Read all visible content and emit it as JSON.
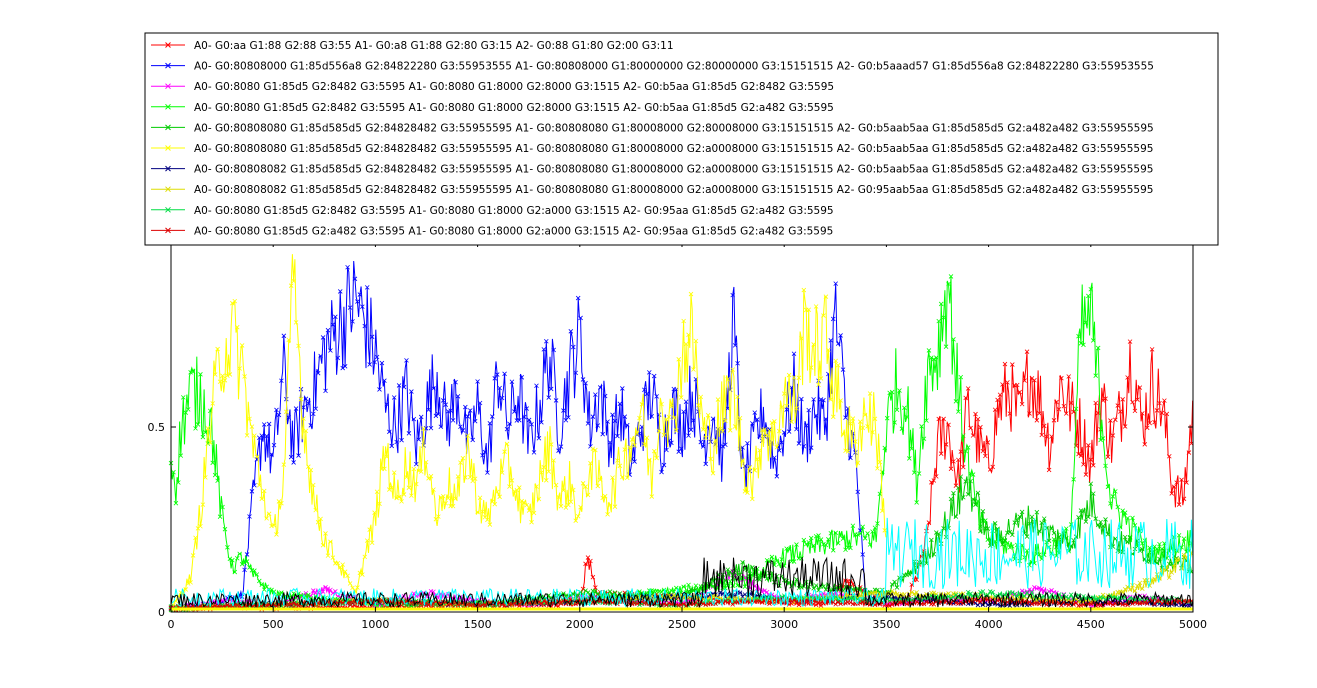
{
  "chart_data": {
    "type": "line",
    "title": "",
    "xlabel": "",
    "ylabel": "",
    "xlim": [
      0,
      5000
    ],
    "ylim": [
      0,
      1
    ],
    "x_ticks": [
      0,
      500,
      1000,
      1500,
      2000,
      2500,
      3000,
      3500,
      4000,
      4500,
      5000
    ],
    "x_tick_labels": [
      "0",
      "500",
      "1000",
      "1500",
      "2000",
      "2500",
      "3000",
      "3500",
      "4000",
      "4500",
      "5000"
    ],
    "y_ticks": [
      0,
      0.5
    ],
    "y_tick_labels": [
      "0",
      "0.5"
    ],
    "grid": false,
    "legend_position": "top",
    "marker": "x",
    "series": [
      {
        "name": "A0- G0:aa G1:88 G2:88 G3:55 A1- G0:a8 G1:88 G2:80 G3:15 A2- G0:88 G1:80 G2:00 G3:11",
        "color": "#ff0000",
        "x": [
          0,
          2000,
          2040,
          2080,
          3200,
          3300,
          3500,
          3600,
          3650,
          3700,
          3750,
          3800,
          3850,
          3900,
          3950,
          4000,
          4050,
          4100,
          4150,
          4200,
          4250,
          4300,
          4350,
          4400,
          4450,
          4500,
          4550,
          4600,
          4650,
          4700,
          4750,
          4800,
          4850,
          4900,
          4950,
          5000
        ],
        "y": [
          0.01,
          0.02,
          0.15,
          0.05,
          0.02,
          0.08,
          0.02,
          0.03,
          0.1,
          0.2,
          0.45,
          0.5,
          0.35,
          0.55,
          0.45,
          0.4,
          0.55,
          0.6,
          0.52,
          0.65,
          0.58,
          0.45,
          0.62,
          0.55,
          0.5,
          0.4,
          0.6,
          0.45,
          0.55,
          0.7,
          0.5,
          0.62,
          0.55,
          0.35,
          0.3,
          0.55
        ]
      },
      {
        "name": "A0- G0:80808000 G1:85d556a8 G2:84822280 G3:55953555 A1- G0:80808000 G1:80000000 G2:80000000 G3:15151515 A2- G0:b5aaad57 G1:85d556a8 G2:84822280 G3:55953555",
        "color": "#0000ff",
        "x": [
          0,
          200,
          350,
          400,
          450,
          500,
          550,
          600,
          650,
          700,
          750,
          800,
          850,
          900,
          950,
          1000,
          1050,
          1100,
          1150,
          1200,
          1250,
          1300,
          1350,
          1400,
          1450,
          1500,
          1550,
          1600,
          1650,
          1700,
          1750,
          1800,
          1850,
          1900,
          1950,
          2000,
          2050,
          2100,
          2150,
          2200,
          2250,
          2300,
          2350,
          2400,
          2450,
          2500,
          2550,
          2600,
          2650,
          2700,
          2750,
          2800,
          2850,
          2900,
          2950,
          3000,
          3050,
          3100,
          3150,
          3200,
          3250,
          3300,
          3350,
          3400
        ],
        "y": [
          0.01,
          0.02,
          0.05,
          0.3,
          0.5,
          0.4,
          0.65,
          0.45,
          0.55,
          0.6,
          0.7,
          0.75,
          0.8,
          0.85,
          0.78,
          0.7,
          0.55,
          0.5,
          0.6,
          0.45,
          0.55,
          0.65,
          0.5,
          0.6,
          0.45,
          0.55,
          0.4,
          0.65,
          0.5,
          0.6,
          0.45,
          0.55,
          0.7,
          0.5,
          0.65,
          0.75,
          0.5,
          0.6,
          0.45,
          0.55,
          0.4,
          0.5,
          0.6,
          0.45,
          0.55,
          0.5,
          0.6,
          0.45,
          0.55,
          0.4,
          0.8,
          0.35,
          0.45,
          0.55,
          0.4,
          0.5,
          0.6,
          0.45,
          0.55,
          0.5,
          0.8,
          0.55,
          0.4,
          0.02
        ]
      },
      {
        "name": "A0- G0:8080 G1:85d5 G2:8482 G3:5595 A1- G0:8080 G1:8000 G2:8000 G3:1515 A2- G0:b5aa G1:85d5 G2:8482 G3:5595",
        "color": "#ff00ff",
        "x": [
          0,
          250,
          500,
          750,
          1000,
          1250,
          1500,
          1750,
          2000,
          2250,
          2500,
          2750,
          3000,
          3250,
          3500,
          3750,
          4000,
          4250,
          4500,
          4750,
          5000
        ],
        "y": [
          0.01,
          0.03,
          0.02,
          0.06,
          0.02,
          0.05,
          0.03,
          0.02,
          0.04,
          0.03,
          0.02,
          0.1,
          0.03,
          0.05,
          0.02,
          0.04,
          0.03,
          0.06,
          0.02,
          0.04,
          0.02
        ]
      },
      {
        "name": "A0- G0:8080 G1:85d5 G2:8482 G3:5595 A1- G0:8080 G1:8000 G2:8000 G3:1515 A2- G0:b5aa G1:85d5 G2:a482 G3:5595",
        "color": "#00ff00",
        "x": [
          0,
          25,
          50,
          100,
          150,
          200,
          250,
          300,
          350,
          400,
          500,
          1000,
          2000,
          2800,
          3000,
          3300,
          3450,
          3500,
          3550,
          3600,
          3650,
          3700,
          3750,
          3800,
          3850,
          3900,
          3950,
          4000,
          4200,
          4400,
          4450,
          4500,
          4600,
          4800,
          5000
        ],
        "y": [
          0.4,
          0.35,
          0.5,
          0.6,
          0.58,
          0.5,
          0.25,
          0.12,
          0.15,
          0.1,
          0.05,
          0.02,
          0.03,
          0.08,
          0.15,
          0.2,
          0.2,
          0.5,
          0.62,
          0.55,
          0.35,
          0.65,
          0.7,
          0.9,
          0.6,
          0.4,
          0.25,
          0.2,
          0.15,
          0.2,
          0.75,
          0.8,
          0.3,
          0.15,
          0.2
        ]
      },
      {
        "name": "A0- G0:80808080 G1:85d585d5 G2:84828482 G3:55955595 A1- G0:80808080 G1:80008000 G2:80008000 G3:15151515 A2- G0:b5aab5aa G1:85d585d5 G2:a482a482 G3:55955595",
        "color": "#00cc00",
        "x": [
          0,
          500,
          1000,
          1500,
          2000,
          2500,
          2800,
          3000,
          3500,
          3700,
          3800,
          3900,
          4000,
          4200,
          4400,
          4500,
          4600,
          4800,
          5000
        ],
        "y": [
          0.01,
          0.02,
          0.03,
          0.02,
          0.05,
          0.04,
          0.12,
          0.08,
          0.05,
          0.15,
          0.25,
          0.35,
          0.2,
          0.25,
          0.18,
          0.3,
          0.2,
          0.15,
          0.12
        ]
      },
      {
        "name": "A0- G0:80808080 G1:85d585d5 G2:84828482 G3:55955595 A1- G0:80808080 G1:80008000 G2:a0008000 G3:15151515 A2- G0:b5aab5aa G1:85d585d5 G2:a482a482 G3:55955595",
        "color": "#ffff00",
        "x": [
          0,
          50,
          100,
          150,
          200,
          250,
          300,
          350,
          400,
          500,
          550,
          600,
          650,
          700,
          750,
          800,
          850,
          900,
          950,
          1000,
          1050,
          1100,
          1150,
          1200,
          1250,
          1300,
          1350,
          1400,
          1450,
          1500,
          1550,
          1600,
          1650,
          1700,
          1750,
          1800,
          1850,
          1900,
          1950,
          2000,
          2050,
          2100,
          2150,
          2200,
          2250,
          2300,
          2350,
          2400,
          2450,
          2500,
          2550,
          2600,
          2650,
          2700,
          2750,
          2800,
          2850,
          2900,
          2950,
          3000,
          3050,
          3100,
          3150,
          3200,
          3250,
          3300,
          3350,
          3400,
          3450,
          3500
        ],
        "y": [
          0.01,
          0.05,
          0.1,
          0.3,
          0.55,
          0.7,
          0.75,
          0.65,
          0.45,
          0.2,
          0.35,
          0.9,
          0.5,
          0.3,
          0.2,
          0.15,
          0.1,
          0.05,
          0.15,
          0.25,
          0.45,
          0.3,
          0.4,
          0.35,
          0.45,
          0.25,
          0.35,
          0.3,
          0.45,
          0.3,
          0.25,
          0.35,
          0.4,
          0.3,
          0.25,
          0.35,
          0.45,
          0.3,
          0.35,
          0.25,
          0.4,
          0.35,
          0.3,
          0.4,
          0.45,
          0.55,
          0.35,
          0.6,
          0.5,
          0.7,
          0.75,
          0.5,
          0.45,
          0.55,
          0.6,
          0.4,
          0.35,
          0.5,
          0.45,
          0.6,
          0.55,
          0.78,
          0.7,
          0.75,
          0.6,
          0.5,
          0.45,
          0.55,
          0.5,
          0.2
        ]
      },
      {
        "name": "A0- G0:80808082 G1:85d585d5 G2:84828482 G3:55955595 A1- G0:80808080 G1:80008000 G2:a0008000 G3:15151515 A2- G0:b5aab5aa G1:85d585d5 G2:a482a482 G3:55955595",
        "color": "#000080",
        "x": [
          0,
          500,
          1000,
          1500,
          2000,
          2500,
          2800,
          3000,
          3500,
          4000,
          4500,
          5000
        ],
        "y": [
          0.01,
          0.02,
          0.03,
          0.02,
          0.03,
          0.04,
          0.05,
          0.03,
          0.04,
          0.02,
          0.03,
          0.02
        ]
      },
      {
        "name": "A0- G0:80808082 G1:85d585d5 G2:84828482 G3:55955595 A1- G0:80808080 G1:80008000 G2:a0008000 G3:15151515 A2- G0:95aab5aa G1:85d585d5 G2:a482a482 G3:55955595",
        "color": "#dddd00",
        "x": [
          0,
          500,
          1000,
          1500,
          2000,
          2500,
          3000,
          3500,
          4000,
          4500,
          4800,
          5000
        ],
        "y": [
          0.01,
          0.02,
          0.03,
          0.02,
          0.03,
          0.04,
          0.03,
          0.05,
          0.04,
          0.03,
          0.08,
          0.15
        ]
      },
      {
        "name": "A0- G0:8080 G1:85d5 G2:8482 G3:5595 A1- G0:8080 G1:8000 G2:a000 G3:1515 A2- G0:95aa G1:85d5 G2:a482 G3:5595",
        "color": "#00dd44",
        "x": [
          0,
          500,
          1000,
          1500,
          2000,
          2500,
          3000,
          3500,
          4000,
          4500,
          5000
        ],
        "y": [
          0.01,
          0.02,
          0.03,
          0.02,
          0.03,
          0.02,
          0.04,
          0.03,
          0.05,
          0.04,
          0.03
        ]
      },
      {
        "name": "A0- G0:8080 G1:85d5 G2:a482 G3:5595 A1- G0:8080 G1:8000 G2:a000 G3:1515 A2- G0:95aa G1:85d5 G2:a482 G3:5595",
        "color": "#dd0000",
        "x": [
          0,
          500,
          1000,
          1500,
          2000,
          2500,
          3000,
          3500,
          4000,
          4500,
          5000
        ],
        "y": [
          0.01,
          0.02,
          0.03,
          0.02,
          0.03,
          0.02,
          0.03,
          0.02,
          0.03,
          0.02,
          0.03
        ]
      }
    ],
    "extra_series_colors": [
      "#00ffff",
      "#000000"
    ]
  }
}
